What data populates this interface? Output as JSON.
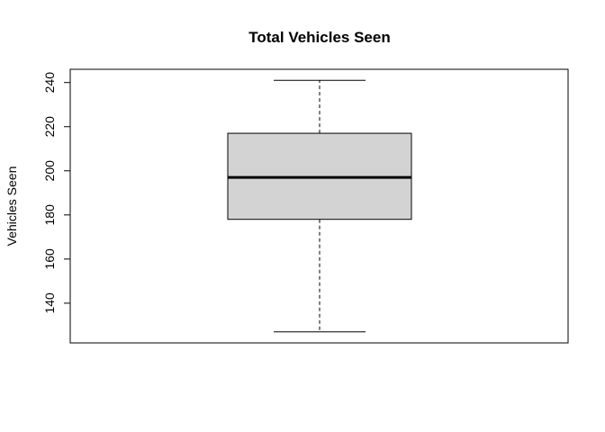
{
  "chart_data": {
    "type": "boxplot",
    "title": "Total Vehicles Seen",
    "xlabel": "",
    "ylabel": "Vehicles Seen",
    "ylim": [
      122,
      246
    ],
    "yticks": [
      140,
      160,
      180,
      200,
      220,
      240
    ],
    "yticklabels": [
      "140",
      "160",
      "180",
      "200",
      "220",
      "240"
    ],
    "grid": false,
    "legend": "none",
    "boxes": [
      {
        "min": 127,
        "q1": 178,
        "median": 197,
        "q3": 217,
        "max": 241
      }
    ],
    "colors": {
      "box_fill": "#d3d3d3",
      "line": "#000000"
    }
  }
}
